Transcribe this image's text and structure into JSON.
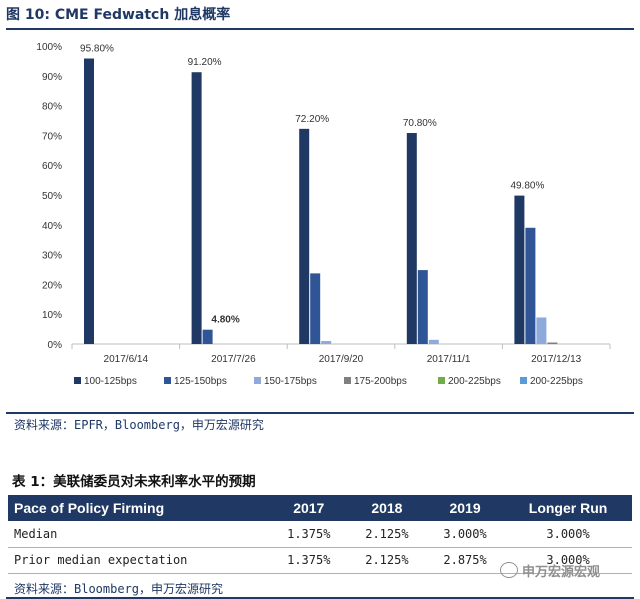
{
  "figure_title": "图 10: CME Fedwatch 加息概率",
  "source_1": "资料来源：EPFR，Bloomberg，申万宏源研究",
  "table_title": "表 1：美联储委员对未来利率水平的预期",
  "source_2": "资料来源：Bloomberg，申万宏源研究",
  "watermark": "申万宏源宏观",
  "colors": {
    "series": [
      "#1f3864",
      "#2f5597",
      "#8eaadb",
      "#7f7f7f",
      "#70ad47",
      "#5b9bd5"
    ],
    "header_bg": "#1f3864"
  },
  "chart_data": {
    "type": "bar",
    "categories": [
      "2017/6/14",
      "2017/7/26",
      "2017/9/20",
      "2017/11/1",
      "2017/12/13"
    ],
    "series": [
      {
        "name": "100-125bps",
        "values": [
          95.8,
          91.2,
          72.2,
          70.8,
          49.8
        ]
      },
      {
        "name": "125-150bps",
        "values": [
          0,
          4.8,
          23.7,
          24.8,
          39.0
        ]
      },
      {
        "name": "150-175bps",
        "values": [
          0,
          0,
          1.0,
          1.4,
          8.9
        ]
      },
      {
        "name": "175-200bps",
        "values": [
          0,
          0,
          0,
          0,
          0.5
        ]
      },
      {
        "name": "200-225bps",
        "values": [
          0,
          0,
          0,
          0,
          0
        ]
      },
      {
        "name": "200-225bps",
        "values": [
          0,
          0,
          0,
          0,
          0
        ]
      }
    ],
    "data_labels": [
      {
        "category": "2017/6/14",
        "series": 0,
        "text": "95.80%"
      },
      {
        "category": "2017/7/26",
        "series": 0,
        "text": "91.20%"
      },
      {
        "category": "2017/7/26",
        "series": 1,
        "text": "4.80%"
      },
      {
        "category": "2017/9/20",
        "series": 0,
        "text": "72.20%"
      },
      {
        "category": "2017/11/1",
        "series": 0,
        "text": "70.80%"
      },
      {
        "category": "2017/12/13",
        "series": 0,
        "text": "49.80%"
      }
    ],
    "y_ticks": [
      "0%",
      "10%",
      "20%",
      "30%",
      "40%",
      "50%",
      "60%",
      "70%",
      "80%",
      "90%",
      "100%"
    ],
    "ylim": [
      0,
      100
    ],
    "legend_position": "bottom",
    "grid": false
  },
  "table": {
    "headers": [
      "Pace of Policy Firming",
      "2017",
      "2018",
      "2019",
      "Longer Run"
    ],
    "rows": [
      [
        "Median",
        "1.375%",
        "2.125%",
        "3.000%",
        "3.000%"
      ],
      [
        "Prior median expectation",
        "1.375%",
        "2.125%",
        "2.875%",
        "3.000%"
      ]
    ]
  }
}
